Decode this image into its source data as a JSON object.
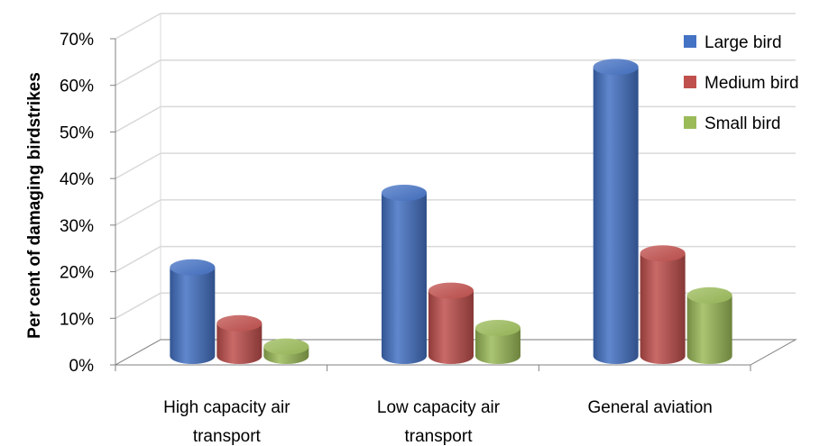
{
  "chart_data": {
    "type": "bar",
    "style": "3d-cylinder",
    "categories": [
      "High capacity air transport",
      "Low capacity air transport",
      "General aviation"
    ],
    "category_lines": [
      [
        "High capacity air",
        "transport"
      ],
      [
        "Low capacity air",
        "transport"
      ],
      [
        "General aviation"
      ]
    ],
    "series": [
      {
        "name": "Large bird",
        "color": "#4472C4",
        "values": [
          19,
          35,
          62
        ]
      },
      {
        "name": "Medium bird",
        "color": "#C0504D",
        "values": [
          7,
          14,
          22
        ]
      },
      {
        "name": "Small bird",
        "color": "#9BBB59",
        "values": [
          2,
          6,
          13
        ]
      }
    ],
    "ylabel": "Per cent of damaging birdstrikes",
    "yticks": [
      "0%",
      "10%",
      "20%",
      "30%",
      "40%",
      "50%",
      "60%",
      "70%"
    ],
    "ylim": [
      0,
      70
    ],
    "grid": true,
    "legend_position": "top-right"
  }
}
